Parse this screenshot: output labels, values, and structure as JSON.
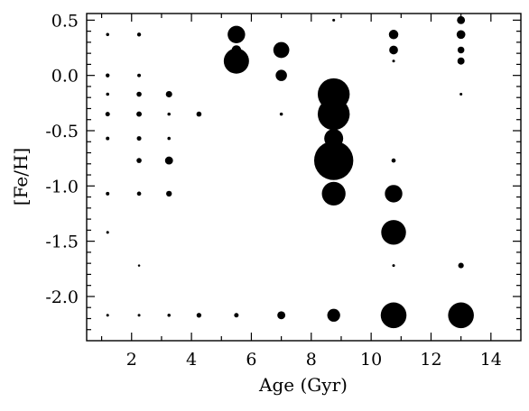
{
  "chart_data": {
    "type": "scatter",
    "title": "",
    "xlabel": "Age (Gyr)",
    "ylabel": "[Fe/H]",
    "xlim": [
      0.5,
      15.0
    ],
    "ylim": [
      -2.4,
      0.56
    ],
    "xticks": [
      2,
      4,
      6,
      8,
      10,
      12,
      14
    ],
    "xtick_labels": [
      "2",
      "4",
      "6",
      "8",
      "10",
      "12",
      "14"
    ],
    "yticks": [
      0.5,
      0.0,
      -0.5,
      -1.0,
      -1.5,
      -2.0
    ],
    "ytick_labels": [
      "0.5",
      "0.0",
      "-0.5",
      "-1.0",
      "-1.5",
      "-2.0"
    ],
    "grid": false,
    "marker_color": "#000000",
    "size_encoding": "bubble area proportional to weight",
    "points": [
      {
        "x": 1.2,
        "y": 0.37,
        "w": 0.4
      },
      {
        "x": 1.2,
        "y": 0.0,
        "w": 0.6
      },
      {
        "x": 1.2,
        "y": -0.17,
        "w": 0.4
      },
      {
        "x": 1.2,
        "y": -0.35,
        "w": 0.8
      },
      {
        "x": 1.2,
        "y": -0.57,
        "w": 0.5
      },
      {
        "x": 1.2,
        "y": -1.07,
        "w": 0.5
      },
      {
        "x": 1.2,
        "y": -1.42,
        "w": 0.3
      },
      {
        "x": 1.2,
        "y": -2.17,
        "w": 0.3
      },
      {
        "x": 2.25,
        "y": 0.37,
        "w": 0.6
      },
      {
        "x": 2.25,
        "y": 0.0,
        "w": 0.5
      },
      {
        "x": 2.25,
        "y": -0.17,
        "w": 1.0
      },
      {
        "x": 2.25,
        "y": -0.35,
        "w": 1.1
      },
      {
        "x": 2.25,
        "y": -0.57,
        "w": 0.8
      },
      {
        "x": 2.25,
        "y": -0.77,
        "w": 1.0
      },
      {
        "x": 2.25,
        "y": -1.07,
        "w": 0.7
      },
      {
        "x": 2.25,
        "y": -1.72,
        "w": 0.2
      },
      {
        "x": 2.25,
        "y": -2.17,
        "w": 0.3
      },
      {
        "x": 3.25,
        "y": -0.17,
        "w": 1.6
      },
      {
        "x": 3.25,
        "y": -0.35,
        "w": 0.4
      },
      {
        "x": 3.25,
        "y": -0.57,
        "w": 0.4
      },
      {
        "x": 3.25,
        "y": -0.77,
        "w": 2.5
      },
      {
        "x": 3.25,
        "y": -1.07,
        "w": 1.3
      },
      {
        "x": 3.25,
        "y": -2.17,
        "w": 0.4
      },
      {
        "x": 4.25,
        "y": -0.35,
        "w": 1.0
      },
      {
        "x": 4.25,
        "y": -2.17,
        "w": 0.9
      },
      {
        "x": 5.5,
        "y": 0.37,
        "w": 12.0
      },
      {
        "x": 5.5,
        "y": 0.23,
        "w": 3.5
      },
      {
        "x": 5.5,
        "y": 0.13,
        "w": 25.0
      },
      {
        "x": 5.5,
        "y": -2.17,
        "w": 0.8
      },
      {
        "x": 7.0,
        "y": 0.23,
        "w": 10.0
      },
      {
        "x": 7.0,
        "y": 0.0,
        "w": 5.0
      },
      {
        "x": 7.0,
        "y": -0.35,
        "w": 0.4
      },
      {
        "x": 7.0,
        "y": -2.17,
        "w": 2.5
      },
      {
        "x": 8.75,
        "y": 0.5,
        "w": 0.3
      },
      {
        "x": 8.75,
        "y": -0.17,
        "w": 40.0
      },
      {
        "x": 8.75,
        "y": -0.35,
        "w": 40.0
      },
      {
        "x": 8.75,
        "y": -0.57,
        "w": 14.0
      },
      {
        "x": 8.75,
        "y": -0.77,
        "w": 60.0
      },
      {
        "x": 8.75,
        "y": -1.07,
        "w": 22.0
      },
      {
        "x": 8.75,
        "y": -2.17,
        "w": 6.5
      },
      {
        "x": 10.75,
        "y": 0.37,
        "w": 3.5
      },
      {
        "x": 10.75,
        "y": 0.23,
        "w": 3.0
      },
      {
        "x": 10.75,
        "y": 0.13,
        "w": 0.3
      },
      {
        "x": 10.75,
        "y": -0.77,
        "w": 0.7
      },
      {
        "x": 10.75,
        "y": -1.07,
        "w": 12.0
      },
      {
        "x": 10.75,
        "y": -1.42,
        "w": 24.0
      },
      {
        "x": 10.75,
        "y": -1.72,
        "w": 0.3
      },
      {
        "x": 10.75,
        "y": -2.17,
        "w": 26.0
      },
      {
        "x": 13.0,
        "y": 0.5,
        "w": 2.5
      },
      {
        "x": 13.0,
        "y": 0.37,
        "w": 3.0
      },
      {
        "x": 13.0,
        "y": 0.23,
        "w": 1.8
      },
      {
        "x": 13.0,
        "y": 0.13,
        "w": 2.0
      },
      {
        "x": 13.0,
        "y": -0.17,
        "w": 0.3
      },
      {
        "x": 13.0,
        "y": -1.72,
        "w": 1.2
      },
      {
        "x": 13.0,
        "y": -2.17,
        "w": 26.0
      }
    ]
  }
}
